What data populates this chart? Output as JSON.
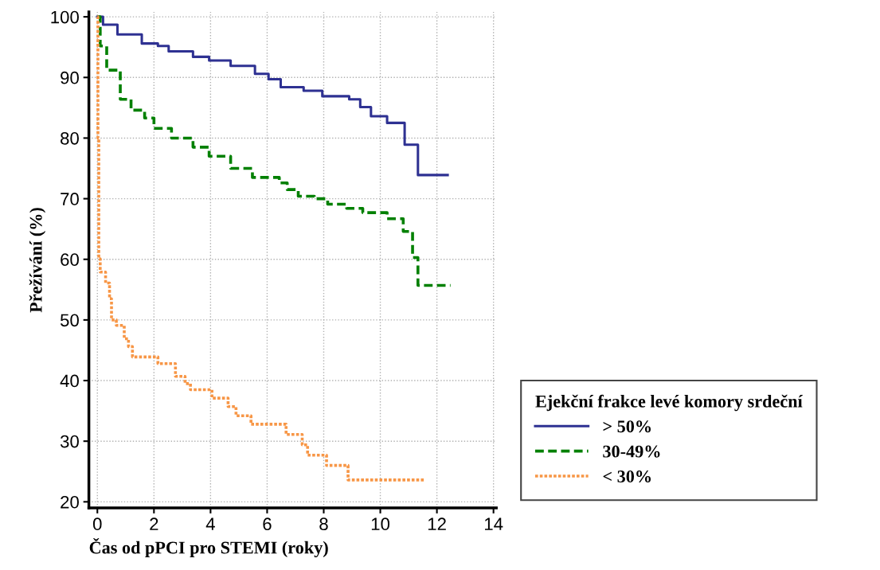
{
  "chart_data": {
    "type": "step",
    "xlabel": "Čas od pPCI pro STEMI (roky)",
    "ylabel": "Přežívání (%)",
    "legend_title": "Ejekční frakce levé komory srdeční",
    "xlim": [
      -0.3,
      14.1
    ],
    "ylim": [
      19,
      100.8
    ],
    "xticks": [
      0,
      2,
      4,
      6,
      8,
      10,
      12,
      14
    ],
    "yticks": [
      20,
      30,
      40,
      50,
      60,
      70,
      80,
      90,
      100
    ],
    "grid": true,
    "legend": "bottom right",
    "series": [
      {
        "name": "> 50%",
        "color": "#2e3192",
        "line_style": "solid",
        "x": [
          0,
          0.2,
          0.71,
          1.57,
          2.14,
          2.52,
          3.38,
          3.95,
          4.71,
          5.57,
          6.05,
          6.48,
          7.29,
          7.95,
          8.9,
          9.29,
          9.67,
          10.24,
          10.86,
          11.33,
          12.38
        ],
        "values": [
          100,
          98.7,
          97.1,
          95.6,
          95.2,
          94.3,
          93.4,
          92.8,
          91.9,
          90.6,
          89.7,
          88.4,
          87.8,
          86.9,
          86.4,
          85.1,
          83.6,
          82.5,
          78.9,
          73.9,
          73.9
        ]
      },
      {
        "name": "30-49%",
        "color": "#008000",
        "line_style": "dashed",
        "x": [
          0,
          0.1,
          0.33,
          0.81,
          1.19,
          1.67,
          2.0,
          2.62,
          3.38,
          3.95,
          4.71,
          5.48,
          6.43,
          6.71,
          7.1,
          7.67,
          8.14,
          8.81,
          9.38,
          10.24,
          10.81,
          11.14,
          11.33,
          12.48
        ],
        "values": [
          100,
          95.2,
          91.2,
          86.4,
          84.6,
          83.3,
          81.6,
          80.0,
          78.5,
          77.0,
          75.0,
          73.5,
          72.6,
          71.5,
          70.4,
          70.0,
          69.1,
          68.4,
          67.7,
          66.7,
          64.6,
          60.3,
          55.7,
          55.7
        ]
      },
      {
        "name": "< 30%",
        "color": "#f79646",
        "line_style": "dotted",
        "x": [
          0,
          0.02,
          0.05,
          0.1,
          0.29,
          0.43,
          0.5,
          0.67,
          0.95,
          1.1,
          1.24,
          1.33,
          2.14,
          2.76,
          3.1,
          3.29,
          4.05,
          4.62,
          4.9,
          5.43,
          6.67,
          7.24,
          7.43,
          8.1,
          8.86,
          11.57
        ],
        "values": [
          100,
          80,
          60.1,
          57.9,
          56.1,
          53.5,
          50.0,
          49.1,
          46.9,
          45.6,
          43.9,
          43.9,
          42.8,
          40.7,
          39.5,
          38.5,
          37.1,
          35.7,
          34.2,
          32.8,
          31.1,
          29.4,
          27.7,
          26.0,
          23.6,
          23.6
        ]
      }
    ]
  }
}
